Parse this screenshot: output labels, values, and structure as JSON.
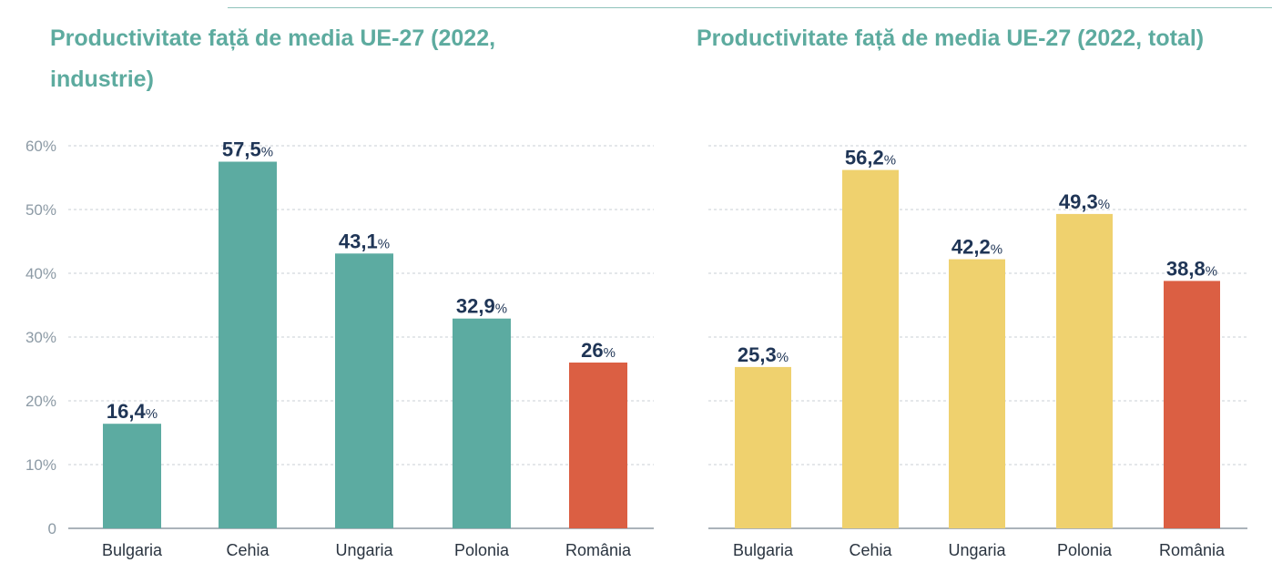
{
  "colors": {
    "title": "#5dab9f",
    "teal": "#5caba1",
    "yellow": "#efd16e",
    "red": "#db5f43",
    "value_label": "#1f3556",
    "axis_tick": "#8c9aa5",
    "grid": "#c9cfd4"
  },
  "chart_data": [
    {
      "type": "bar",
      "title": "Productivitate față de media UE-27 (2022, industrie)",
      "categories": [
        "Bulgaria",
        "Cehia",
        "Ungaria",
        "Polonia",
        "România"
      ],
      "values": [
        16.4,
        57.5,
        43.1,
        32.9,
        26
      ],
      "value_labels": [
        "16,4",
        "57,5",
        "43,1",
        "32,9",
        "26"
      ],
      "value_suffix": "%",
      "highlight": "România",
      "ylim": [
        0,
        60
      ],
      "yticks": [
        "0",
        "10%",
        "20%",
        "30%",
        "40%",
        "50%",
        "60%"
      ],
      "grid": true,
      "xlabel": "",
      "ylabel": ""
    },
    {
      "type": "bar",
      "title": "Productivitate față de media UE-27 (2022, total)",
      "categories": [
        "Bulgaria",
        "Cehia",
        "Ungaria",
        "Polonia",
        "România"
      ],
      "values": [
        25.3,
        56.2,
        42.2,
        49.3,
        38.8
      ],
      "value_labels": [
        "25,3",
        "56,2",
        "42,2",
        "49,3",
        "38,8"
      ],
      "value_suffix": "%",
      "highlight": "România",
      "ylim": [
        0,
        60
      ],
      "grid": true,
      "xlabel": "",
      "ylabel": ""
    }
  ]
}
